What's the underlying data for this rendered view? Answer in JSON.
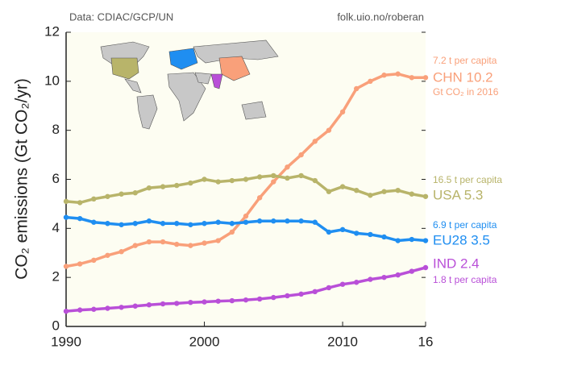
{
  "chart_data": {
    "type": "line",
    "source": "Data: CDIAC/GCP/UN",
    "credit": "folk.uio.no/roberan",
    "y_label": "CO₂ emissions (Gt CO₂/yr)",
    "x": [
      1990,
      1991,
      1992,
      1993,
      1994,
      1995,
      1996,
      1997,
      1998,
      1999,
      2000,
      2001,
      2002,
      2003,
      2004,
      2005,
      2006,
      2007,
      2008,
      2009,
      2010,
      2011,
      2012,
      2013,
      2014,
      2015,
      2016
    ],
    "xlim": [
      1990,
      2016
    ],
    "xticks": [
      1990,
      2000,
      2010,
      {
        "value": 2016,
        "label": "16"
      }
    ],
    "ylim": [
      0,
      12
    ],
    "yticks": [
      0,
      2,
      4,
      6,
      8,
      10,
      12
    ],
    "series": [
      {
        "name": "CHN 10.2",
        "color": "#f9a07a",
        "per_capita": "7.2 t per capita",
        "note": "Gt CO₂ in 2016",
        "values": [
          2.45,
          2.55,
          2.7,
          2.9,
          3.05,
          3.3,
          3.45,
          3.45,
          3.35,
          3.3,
          3.4,
          3.5,
          3.85,
          4.5,
          5.25,
          5.9,
          6.5,
          7.0,
          7.55,
          8.0,
          8.75,
          9.7,
          10.0,
          10.25,
          10.3,
          10.15,
          10.15
        ]
      },
      {
        "name": "USA 5.3",
        "color": "#b8b46a",
        "per_capita": "16.5 t per capita",
        "values": [
          5.1,
          5.05,
          5.2,
          5.3,
          5.4,
          5.45,
          5.65,
          5.7,
          5.75,
          5.85,
          6.0,
          5.9,
          5.95,
          6.0,
          6.1,
          6.15,
          6.05,
          6.15,
          5.95,
          5.5,
          5.7,
          5.55,
          5.35,
          5.5,
          5.55,
          5.4,
          5.3
        ]
      },
      {
        "name": "EU28 3.5",
        "color": "#1f8ef1",
        "per_capita": "6.9 t per capita",
        "values": [
          4.45,
          4.4,
          4.25,
          4.2,
          4.15,
          4.2,
          4.3,
          4.2,
          4.2,
          4.15,
          4.2,
          4.25,
          4.2,
          4.25,
          4.3,
          4.3,
          4.3,
          4.3,
          4.25,
          3.85,
          3.95,
          3.8,
          3.75,
          3.65,
          3.5,
          3.55,
          3.5
        ]
      },
      {
        "name": "IND 2.4",
        "color": "#b94fd8",
        "per_capita": "1.8 t per capita",
        "values": [
          0.62,
          0.67,
          0.7,
          0.74,
          0.78,
          0.83,
          0.88,
          0.92,
          0.94,
          0.98,
          1.0,
          1.03,
          1.05,
          1.08,
          1.12,
          1.18,
          1.25,
          1.32,
          1.42,
          1.58,
          1.72,
          1.8,
          1.92,
          2.0,
          2.1,
          2.25,
          2.4
        ]
      }
    ]
  }
}
